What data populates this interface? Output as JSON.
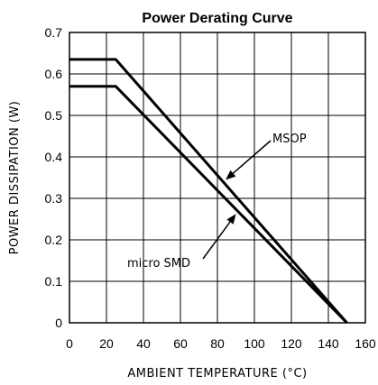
{
  "chart_data": {
    "type": "line",
    "title": "Power Derating Curve",
    "xlabel": "AMBIENT TEMPERATURE (°C)",
    "ylabel": "POWER DISSIPATION (W)",
    "xlim": [
      0,
      160
    ],
    "ylim": [
      0,
      0.7
    ],
    "xticks": [
      "0",
      "20",
      "40",
      "60",
      "80",
      "100",
      "120",
      "140",
      "160"
    ],
    "yticks": [
      "0",
      "0.1",
      "0.2",
      "0.3",
      "0.4",
      "0.5",
      "0.6",
      "0.7"
    ],
    "grid": true,
    "series": [
      {
        "name": "MSOP",
        "x": [
          0,
          25,
          150
        ],
        "y": [
          0.635,
          0.635,
          0
        ]
      },
      {
        "name": "micro SMD",
        "x": [
          0,
          25,
          150
        ],
        "y": [
          0.57,
          0.57,
          0
        ]
      }
    ]
  }
}
